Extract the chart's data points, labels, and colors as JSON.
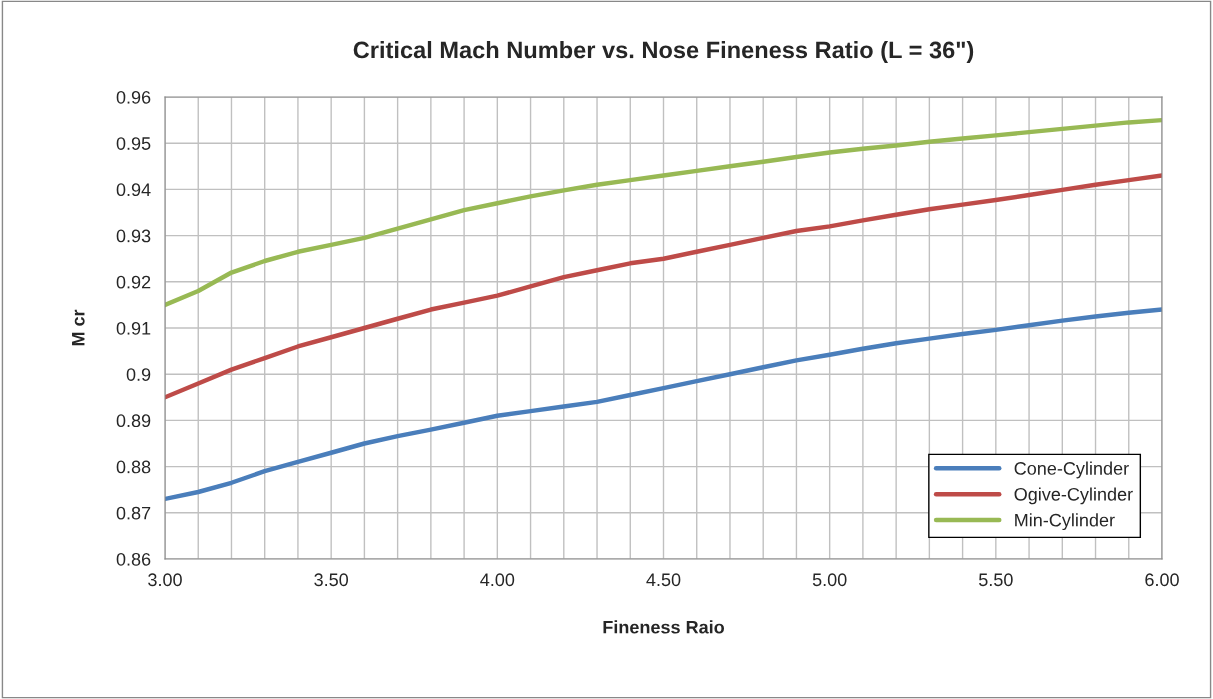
{
  "chart_data": {
    "type": "line",
    "title": "Critical Mach Number vs. Nose Fineness Ratio (L = 36\")",
    "xlabel": "Fineness Raio",
    "ylabel": "M cr",
    "x": [
      3.0,
      3.1,
      3.2,
      3.3,
      3.4,
      3.5,
      3.6,
      3.7,
      3.8,
      3.9,
      4.0,
      4.1,
      4.2,
      4.3,
      4.4,
      4.5,
      4.6,
      4.7,
      4.8,
      4.9,
      5.0,
      5.1,
      5.2,
      5.3,
      5.4,
      5.5,
      5.6,
      5.7,
      5.8,
      5.9,
      6.0
    ],
    "series": [
      {
        "name": "Cone-Cylinder",
        "color": "#4a7ebb",
        "values": [
          0.873,
          0.8745,
          0.8765,
          0.879,
          0.881,
          0.883,
          0.885,
          0.8866,
          0.888,
          0.8895,
          0.891,
          0.892,
          0.893,
          0.894,
          0.8955,
          0.897,
          0.8985,
          0.9,
          0.9015,
          0.903,
          0.9042,
          0.9055,
          0.9067,
          0.9077,
          0.9087,
          0.9096,
          0.9106,
          0.9116,
          0.9125,
          0.9133,
          0.914
        ]
      },
      {
        "name": "Ogive-Cylinder",
        "color": "#be4b48",
        "values": [
          0.895,
          0.898,
          0.901,
          0.9035,
          0.906,
          0.908,
          0.91,
          0.912,
          0.914,
          0.9155,
          0.917,
          0.919,
          0.921,
          0.9225,
          0.924,
          0.925,
          0.9265,
          0.928,
          0.9295,
          0.931,
          0.932,
          0.9333,
          0.9345,
          0.9357,
          0.9367,
          0.9377,
          0.9388,
          0.9399,
          0.941,
          0.942,
          0.943
        ]
      },
      {
        "name": "Min-Cylinder",
        "color": "#98b954",
        "values": [
          0.915,
          0.918,
          0.922,
          0.9245,
          0.9265,
          0.928,
          0.9295,
          0.9315,
          0.9335,
          0.9355,
          0.937,
          0.9385,
          0.9398,
          0.941,
          0.942,
          0.943,
          0.944,
          0.945,
          0.946,
          0.947,
          0.948,
          0.9488,
          0.9495,
          0.9503,
          0.951,
          0.9517,
          0.9524,
          0.9531,
          0.9538,
          0.9545,
          0.955
        ]
      }
    ],
    "xlim": [
      3.0,
      6.0
    ],
    "xticks": [
      {
        "value": 3.0,
        "label": "3.00"
      },
      {
        "value": 3.1,
        "label": null
      },
      {
        "value": 3.2,
        "label": null
      },
      {
        "value": 3.3,
        "label": null
      },
      {
        "value": 3.4,
        "label": null
      },
      {
        "value": 3.5,
        "label": "3.50"
      },
      {
        "value": 3.6,
        "label": null
      },
      {
        "value": 3.7,
        "label": null
      },
      {
        "value": 3.8,
        "label": null
      },
      {
        "value": 3.9,
        "label": null
      },
      {
        "value": 4.0,
        "label": "4.00"
      },
      {
        "value": 4.1,
        "label": null
      },
      {
        "value": 4.2,
        "label": null
      },
      {
        "value": 4.3,
        "label": null
      },
      {
        "value": 4.4,
        "label": null
      },
      {
        "value": 4.5,
        "label": "4.50"
      },
      {
        "value": 4.6,
        "label": null
      },
      {
        "value": 4.7,
        "label": null
      },
      {
        "value": 4.8,
        "label": null
      },
      {
        "value": 4.9,
        "label": null
      },
      {
        "value": 5.0,
        "label": "5.00"
      },
      {
        "value": 5.1,
        "label": null
      },
      {
        "value": 5.2,
        "label": null
      },
      {
        "value": 5.3,
        "label": null
      },
      {
        "value": 5.4,
        "label": null
      },
      {
        "value": 5.5,
        "label": "5.50"
      },
      {
        "value": 5.6,
        "label": null
      },
      {
        "value": 5.7,
        "label": null
      },
      {
        "value": 5.8,
        "label": null
      },
      {
        "value": 5.9,
        "label": null
      },
      {
        "value": 6.0,
        "label": "6.00"
      }
    ],
    "ylim": [
      0.86,
      0.96
    ],
    "yticks": [
      0.86,
      0.87,
      0.88,
      0.89,
      0.9,
      0.91,
      0.92,
      0.93,
      0.94,
      0.95,
      0.96
    ],
    "grid": true,
    "legend": "bottom right",
    "marker": "none",
    "line_style": "solid"
  }
}
